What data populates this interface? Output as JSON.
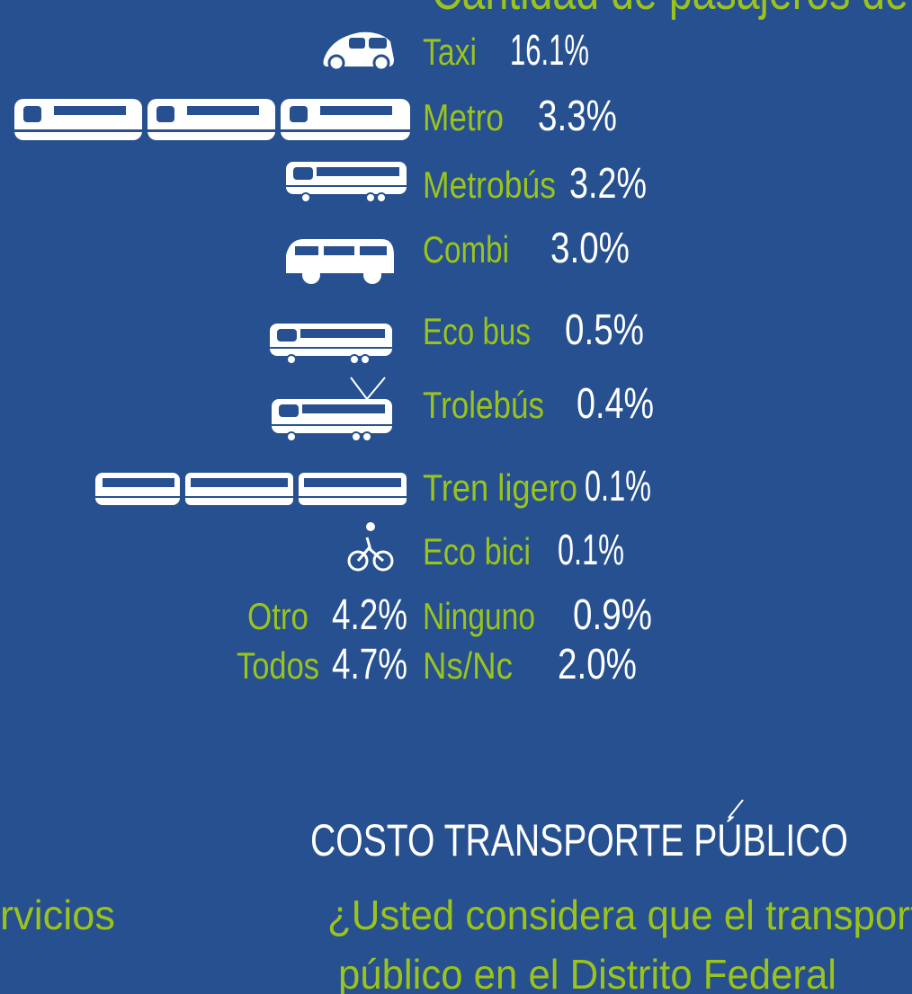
{
  "header": {
    "title": "Cantidad de pasajeros de"
  },
  "items": [
    {
      "label": "Taxi",
      "value": "16.1%"
    },
    {
      "label": "Metro",
      "value": "3.3%"
    },
    {
      "label": "Metrobús",
      "value": "3.2%"
    },
    {
      "label": "Combi",
      "value": "3.0%"
    },
    {
      "label": "Eco bus",
      "value": "0.5%"
    },
    {
      "label": "Trolebús",
      "value": "0.4%"
    },
    {
      "label": "Tren ligero",
      "value": "0.1%"
    },
    {
      "label": "Eco bici",
      "value": "0.1%"
    },
    {
      "label": "Ninguno",
      "value": "0.9%"
    },
    {
      "label": "Ns/Nc",
      "value": "2.0%"
    }
  ],
  "others": [
    {
      "label": "Otro",
      "value": "4.2%"
    },
    {
      "label": "Todos",
      "value": "4.7%"
    }
  ],
  "section": {
    "title": "COSTO TRANSPORTE PÚBLICO",
    "left_text": "rvicios",
    "question_line1": "¿Usted considera que el transport",
    "question_line2": "público en el Distrito Federal"
  }
}
